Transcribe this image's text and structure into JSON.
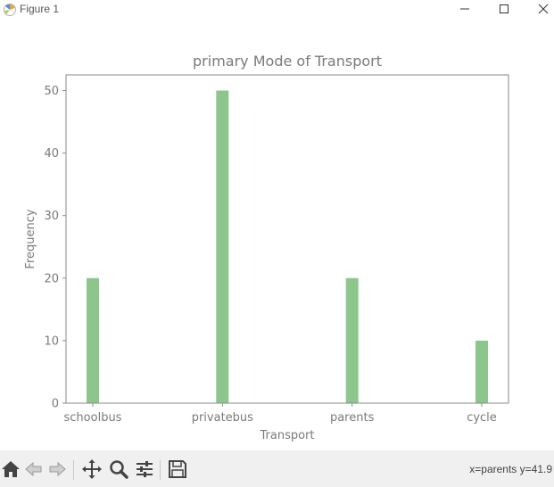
{
  "window": {
    "title": "Figure 1"
  },
  "toolbar": {
    "coord_readout": "x=parents y=41.9",
    "icons": [
      "home-icon",
      "back-icon",
      "forward-icon",
      "pan-icon",
      "zoom-icon",
      "configure-subplots-icon",
      "save-icon"
    ]
  },
  "chart_data": {
    "type": "bar",
    "title": "primary Mode of Transport",
    "xlabel": "Transport",
    "ylabel": "Frequency",
    "categories": [
      "schoolbus",
      "privatebus",
      "parents",
      "cycle"
    ],
    "values": [
      20,
      50,
      20,
      10
    ],
    "ylim": [
      0,
      52.5
    ],
    "yticks": [
      0,
      10,
      20,
      30,
      40,
      50
    ],
    "bar_color": "#8dc68d",
    "grid": false,
    "legend": "none"
  }
}
